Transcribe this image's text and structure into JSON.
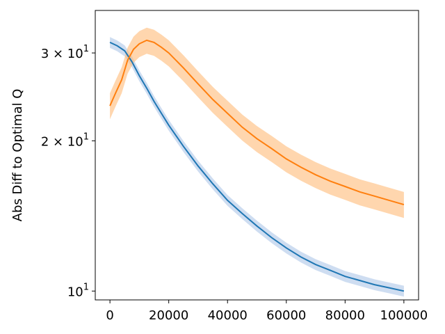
{
  "chart_data": {
    "type": "line",
    "title": "",
    "xlabel": "",
    "ylabel": "Abs Diff to Optimal Q",
    "xscale": "linear",
    "yscale": "log",
    "xlim": [
      -5000,
      105000
    ],
    "ylim": [
      9.6,
      36.5
    ],
    "grid": false,
    "legend": "none",
    "x_ticks": [
      0,
      20000,
      40000,
      60000,
      80000,
      100000
    ],
    "x_tick_labels": [
      "0",
      "20000",
      "40000",
      "60000",
      "80000",
      "100000"
    ],
    "y_ticks": [
      10,
      20,
      30
    ],
    "y_tick_labels": [
      "10",
      "2 × 10",
      "3 × 10"
    ],
    "y_tick_exponent": "1",
    "series": [
      {
        "color": "#1f77b4",
        "band_color": "#aec7e8",
        "x": [
          0,
          2500,
          5000,
          7500,
          10000,
          12500,
          15000,
          17500,
          20000,
          25000,
          30000,
          35000,
          40000,
          45000,
          50000,
          55000,
          60000,
          65000,
          70000,
          75000,
          80000,
          85000,
          90000,
          95000,
          100000
        ],
        "y": [
          31.5,
          31.0,
          30.3,
          28.8,
          27.0,
          25.5,
          24.0,
          22.7,
          21.5,
          19.5,
          17.8,
          16.4,
          15.2,
          14.3,
          13.5,
          12.8,
          12.2,
          11.7,
          11.3,
          11.0,
          10.7,
          10.5,
          10.3,
          10.15,
          10.0
        ],
        "band": 0.025
      },
      {
        "color": "#ff7f0e",
        "band_color": "#ffbb78",
        "x": [
          0,
          2000,
          4000,
          6000,
          8000,
          10000,
          12500,
          15000,
          17500,
          20000,
          25000,
          30000,
          35000,
          40000,
          45000,
          50000,
          55000,
          60000,
          65000,
          70000,
          75000,
          80000,
          85000,
          90000,
          95000,
          100000
        ],
        "y": [
          23.5,
          25.0,
          26.5,
          29.0,
          30.5,
          31.3,
          31.8,
          31.5,
          30.8,
          30.0,
          28.0,
          26.0,
          24.2,
          22.7,
          21.3,
          20.2,
          19.3,
          18.4,
          17.7,
          17.1,
          16.6,
          16.2,
          15.8,
          15.5,
          15.2,
          14.9
        ],
        "band": 0.06
      }
    ]
  }
}
